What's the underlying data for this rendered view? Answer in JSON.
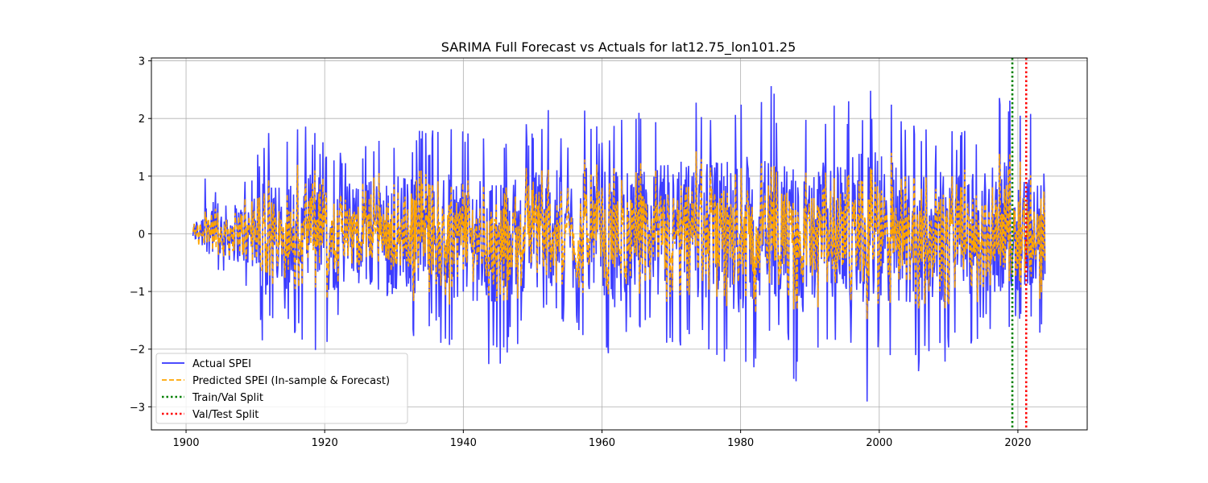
{
  "chart_data": {
    "type": "line",
    "title": "SARIMA Full Forecast vs Actuals for lat12.75_lon101.25",
    "xlabel": "",
    "ylabel": "",
    "xlim": [
      1895,
      2030
    ],
    "ylim": [
      -3.4,
      3.05
    ],
    "x_ticks": [
      1900,
      1920,
      1940,
      1960,
      1980,
      2000,
      2020
    ],
    "y_ticks": [
      -3,
      -2,
      -1,
      0,
      1,
      2,
      3
    ],
    "grid": true,
    "legend_position": "lower-left",
    "x_range": [
      1901,
      2024
    ],
    "series": [
      {
        "name": "Actual SPEI",
        "color": "#3333ff",
        "style": "solid",
        "envelope": {
          "x": [
            1901,
            1904,
            1905,
            1910,
            1911,
            1912,
            1913,
            1915,
            1919,
            1920,
            1925,
            1930,
            1935,
            1940,
            1945,
            1950,
            1952,
            1955,
            1958,
            1960,
            1962,
            1965,
            1968,
            1971,
            1972,
            1975,
            1980,
            1984,
            1986,
            1988,
            1990,
            1995,
            1998,
            2000,
            2005,
            2010,
            2015,
            2018,
            2020,
            2022,
            2024
          ],
          "max": [
            0.35,
            1.75,
            0.9,
            1.2,
            1.8,
            2.2,
            1.5,
            1.85,
            1.9,
            1.5,
            1.7,
            1.9,
            1.8,
            1.95,
            1.5,
            2.0,
            2.5,
            1.9,
            2.2,
            2.05,
            2.0,
            2.1,
            2.3,
            2.5,
            2.45,
            2.45,
            2.4,
            2.7,
            2.3,
            2.0,
            2.2,
            2.4,
            2.5,
            2.75,
            1.9,
            1.95,
            1.9,
            2.55,
            2.4,
            2.3,
            1.1
          ],
          "min": [
            -0.2,
            -0.5,
            -0.8,
            -1.0,
            -2.25,
            -1.7,
            -1.6,
            -1.8,
            -2.25,
            -2.0,
            -1.6,
            -2.1,
            -1.8,
            -2.15,
            -2.4,
            -1.7,
            -1.5,
            -1.6,
            -1.9,
            -1.8,
            -2.55,
            -1.6,
            -1.8,
            -2.1,
            -1.9,
            -2.0,
            -2.55,
            -2.2,
            -1.8,
            -2.75,
            -2.45,
            -2.0,
            -3.1,
            -2.0,
            -2.55,
            -2.2,
            -1.8,
            -1.7,
            -1.6,
            -1.5,
            -2.05
          ]
        }
      },
      {
        "name": "Predicted SPEI (In-sample & Forecast)",
        "color": "#ffa500",
        "style": "dashed",
        "envelope": {
          "x": [
            1902,
            1905,
            1910,
            1915,
            1920,
            1925,
            1930,
            1935,
            1940,
            1945,
            1950,
            1955,
            1960,
            1965,
            1970,
            1974,
            1975,
            1980,
            1985,
            1990,
            1995,
            2000,
            2005,
            2010,
            2015,
            2020,
            2024
          ],
          "max": [
            0.3,
            0.85,
            0.6,
            1.6,
            1.2,
            1.3,
            1.2,
            1.1,
            1.0,
            1.05,
            1.3,
            1.3,
            1.3,
            1.5,
            1.6,
            2.0,
            1.55,
            1.3,
            1.2,
            1.2,
            1.1,
            1.4,
            1.95,
            1.5,
            1.7,
            1.4,
            0.9
          ],
          "min": [
            -0.3,
            -0.4,
            -0.5,
            -1.3,
            -1.3,
            -1.3,
            -1.45,
            -1.2,
            -1.3,
            -1.25,
            -1.3,
            -1.3,
            -1.35,
            -1.3,
            -1.3,
            -1.3,
            -1.3,
            -1.35,
            -1.4,
            -1.5,
            -1.75,
            -1.5,
            -1.3,
            -1.3,
            -1.6,
            -1.3,
            -1.15
          ]
        }
      }
    ],
    "vlines": [
      {
        "name": "Train/Val Split",
        "x": 2019.2,
        "color": "#008000",
        "style": "dotted"
      },
      {
        "name": "Val/Test Split",
        "x": 2021.2,
        "color": "#ff0000",
        "style": "dotted"
      }
    ],
    "legend": [
      {
        "label": "Actual SPEI",
        "color": "#3333ff",
        "style": "solid"
      },
      {
        "label": "Predicted SPEI (In-sample & Forecast)",
        "color": "#ffa500",
        "style": "dashed"
      },
      {
        "label": "Train/Val Split",
        "color": "#008000",
        "style": "dotted"
      },
      {
        "label": "Val/Test Split",
        "color": "#ff0000",
        "style": "dotted"
      }
    ]
  }
}
